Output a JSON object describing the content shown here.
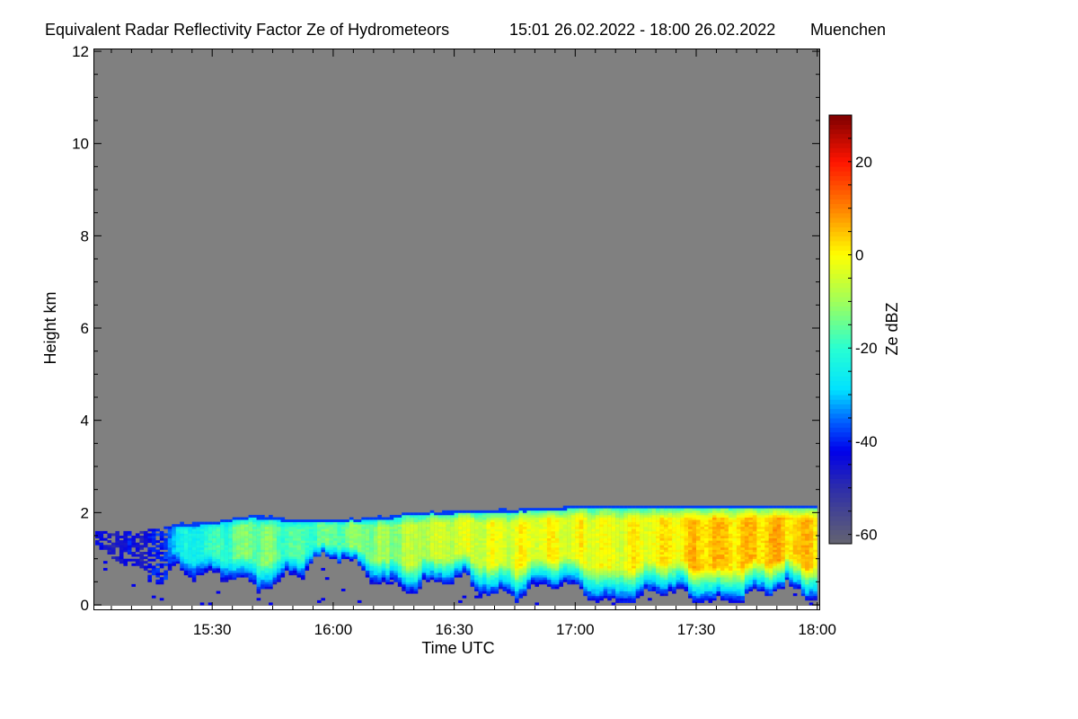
{
  "chart_data": {
    "type": "heatmap",
    "title": "Equivalent Radar Reflectivity Factor Ze of Hydrometeors",
    "time_range_text": "15:01 26.02.2022 - 18:00 26.02.2022",
    "location": "Muenchen",
    "xlabel": "Time UTC",
    "ylabel": "Height km",
    "xlim_minutes_after_1500": [
      1,
      180
    ],
    "ylim": [
      -0.1,
      12
    ],
    "xticks": [
      {
        "label": "15:30",
        "min": 30
      },
      {
        "label": "16:00",
        "min": 60
      },
      {
        "label": "16:30",
        "min": 90
      },
      {
        "label": "17:00",
        "min": 120
      },
      {
        "label": "17:30",
        "min": 150
      },
      {
        "label": "18:00",
        "min": 180
      }
    ],
    "yticks": [
      {
        "label": "0",
        "v": 0
      },
      {
        "label": "2",
        "v": 2
      },
      {
        "label": "4",
        "v": 4
      },
      {
        "label": "6",
        "v": 6
      },
      {
        "label": "8",
        "v": 8
      },
      {
        "label": "10",
        "v": 10
      },
      {
        "label": "12",
        "v": 12
      }
    ],
    "colorbar": {
      "label": "Ze dBZ",
      "range": [
        -62,
        30
      ],
      "ticks": [
        {
          "label": "20",
          "v": 20
        },
        {
          "label": "0",
          "v": 0
        },
        {
          "label": "-20",
          "v": -20
        },
        {
          "label": "-40",
          "v": -40
        },
        {
          "label": "-60",
          "v": -60
        }
      ]
    },
    "background_color": "#808080",
    "echo_profile": {
      "minutes": [
        1,
        10,
        17,
        20,
        30,
        40,
        50,
        60,
        70,
        80,
        90,
        100,
        110,
        120,
        130,
        140,
        150,
        160,
        170,
        180
      ],
      "top_km": [
        1.6,
        1.6,
        1.65,
        1.75,
        1.8,
        1.95,
        1.85,
        1.85,
        1.9,
        2.0,
        2.05,
        2.05,
        2.1,
        2.15,
        2.15,
        2.15,
        2.15,
        2.15,
        2.15,
        2.15
      ],
      "base_km": [
        1.1,
        0.7,
        0.6,
        0.9,
        0.5,
        0.3,
        0.8,
        0.9,
        0.6,
        0.35,
        0.4,
        0.3,
        0.3,
        0.2,
        0.1,
        0.15,
        0.1,
        0.2,
        0.2,
        0.2
      ],
      "max_dbz": [
        -45,
        -45,
        -42,
        -28,
        -20,
        -12,
        -18,
        -15,
        -12,
        -8,
        -4,
        -4,
        -2,
        -2,
        -2,
        0,
        4,
        4,
        5,
        3
      ]
    }
  }
}
